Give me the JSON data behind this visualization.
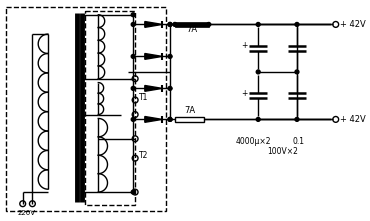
{
  "fig_width": 3.7,
  "fig_height": 2.21,
  "dpi": 100,
  "bg_color": "#ffffff",
  "line_color": "#000000",
  "line_width": 1.0,
  "labels": {
    "v220": "220V",
    "t1": "T1",
    "t2": "T2",
    "fuse1": "7A",
    "fuse2": "7A",
    "cap_label1": "4000μ×2",
    "cap_label2": "0.1",
    "cap_label3": "100V×2",
    "v_plus42_top": "+ 42V",
    "v_plus42_bot": "+ 42V"
  }
}
